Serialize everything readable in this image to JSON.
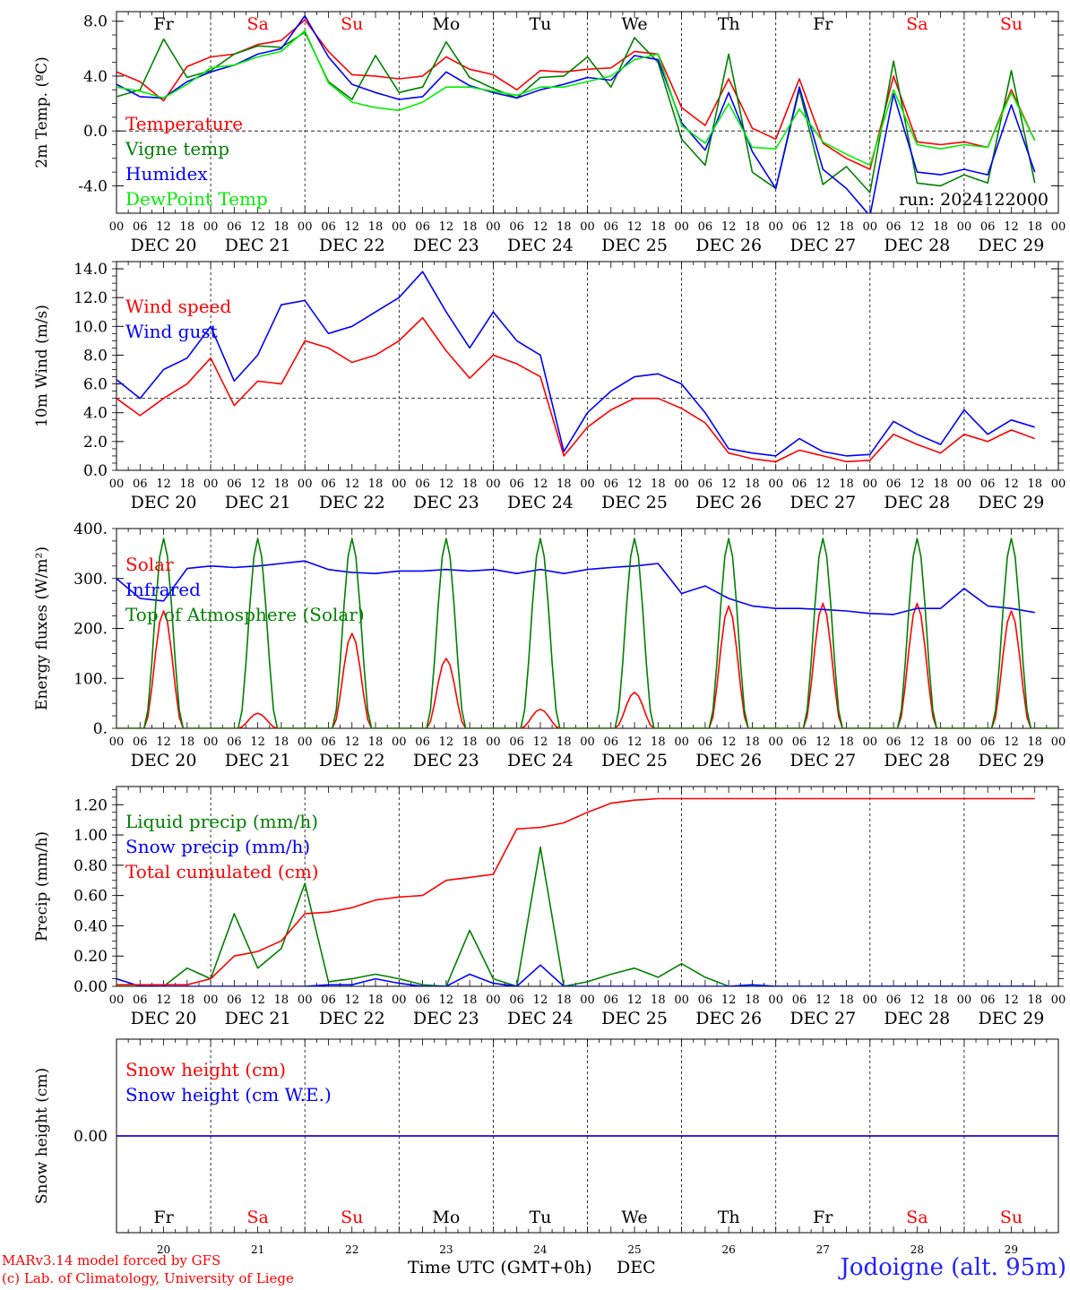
{
  "station": "Jodoigne (alt. 95m)",
  "credits": [
    "MARv3.14 model forced by GFS",
    "(c) Lab. of Climatology, University of Liege"
  ],
  "run_label": "run: 2024122000",
  "weekdays": [
    "Fr",
    "Sa",
    "Su",
    "Mo",
    "Tu",
    "We",
    "Th",
    "Fr",
    "Sa",
    "Su"
  ],
  "weekend_color": "#ff0000",
  "dates": [
    "DEC 20",
    "DEC 21",
    "DEC 22",
    "DEC 23",
    "DEC 24",
    "DEC 25",
    "DEC 26",
    "DEC 27",
    "DEC 28",
    "DEC 29"
  ],
  "hour_ticks": [
    "00",
    "06",
    "12",
    "18"
  ],
  "last_tick": "00",
  "bottom_day_numbers": [
    "20",
    "21",
    "22",
    "23",
    "24",
    "25",
    "26",
    "27",
    "28",
    "29"
  ],
  "x_title": "Time UTC (GMT+0h)",
  "x_month": "DEC",
  "chart_data": [
    {
      "type": "line",
      "ylabel": "2m Temp. (ºC)",
      "ylim": [
        -6,
        8.7
      ],
      "yticks": [
        -4,
        0,
        4,
        8
      ],
      "ytick_labels": [
        "-4.0",
        "0.0",
        "4.0",
        "8.0"
      ],
      "reference_line": 0,
      "x_hours": [
        0,
        6,
        12,
        18,
        24,
        30,
        36,
        42,
        48,
        54,
        60,
        66,
        72,
        78,
        84,
        90,
        96,
        102,
        108,
        114,
        120,
        126,
        132,
        138,
        144,
        150,
        156,
        162,
        168,
        174,
        180,
        186,
        192,
        198,
        204,
        210,
        216,
        222,
        228,
        234
      ],
      "series": [
        {
          "name": "Temperature",
          "color": "#ff0000",
          "values": [
            4.3,
            3.6,
            2.2,
            4.7,
            5.4,
            5.6,
            6.3,
            6.6,
            8.1,
            5.8,
            4.1,
            4.0,
            3.8,
            4.0,
            5.4,
            4.5,
            4.1,
            3.0,
            4.4,
            4.3,
            4.5,
            4.6,
            5.8,
            5.6,
            1.7,
            0.4,
            3.8,
            0.2,
            -0.6,
            3.8,
            -0.9,
            -2.0,
            -2.8,
            4.0,
            -0.8,
            -1.0,
            -0.8,
            -1.2,
            3.0,
            -0.7
          ]
        },
        {
          "name": "Vigne temp",
          "color": "#008000",
          "values": [
            2.5,
            3.0,
            6.7,
            3.9,
            4.4,
            5.6,
            6.2,
            6.1,
            7.2,
            3.6,
            2.3,
            5.5,
            2.8,
            3.2,
            6.5,
            3.9,
            3.1,
            2.4,
            3.9,
            4.0,
            5.4,
            3.2,
            6.8,
            5.0,
            -0.6,
            -2.5,
            5.6,
            -3.0,
            -4.2,
            3.0,
            -3.9,
            -2.6,
            -4.5,
            5.1,
            -3.8,
            -4.0,
            -3.2,
            -3.8,
            4.4,
            -3.8
          ]
        },
        {
          "name": "Humidex",
          "color": "#0000ff",
          "values": [
            3.4,
            2.5,
            2.4,
            3.6,
            4.3,
            4.8,
            5.6,
            6.0,
            8.4,
            5.4,
            3.4,
            2.8,
            2.3,
            2.5,
            4.3,
            3.3,
            2.8,
            2.4,
            3.0,
            3.4,
            3.9,
            3.7,
            5.5,
            5.2,
            0.6,
            -1.4,
            2.8,
            -1.5,
            -4.2,
            3.2,
            -2.8,
            -4.2,
            -6.2,
            2.7,
            -3.0,
            -3.2,
            -2.8,
            -3.2,
            1.9,
            -3.0
          ]
        },
        {
          "name": "DewPoint Temp",
          "color": "#00ee00",
          "values": [
            3.2,
            2.9,
            2.4,
            3.4,
            4.6,
            4.8,
            5.4,
            5.8,
            7.3,
            3.5,
            2.1,
            1.7,
            1.5,
            2.1,
            3.2,
            3.2,
            2.9,
            2.6,
            3.2,
            3.2,
            3.6,
            4.0,
            5.2,
            5.6,
            0.4,
            -0.9,
            2.0,
            -1.2,
            -1.3,
            1.6,
            -0.8,
            -1.7,
            -2.5,
            3.0,
            -1.0,
            -1.3,
            -1.0,
            -1.2,
            2.8,
            -0.7
          ]
        }
      ]
    },
    {
      "type": "line",
      "ylabel": "10m Wind (m/s)",
      "ylim": [
        0,
        14.5
      ],
      "yticks": [
        0,
        2,
        4,
        6,
        8,
        10,
        12,
        14
      ],
      "ytick_labels": [
        "0.0",
        "2.0",
        "4.0",
        "6.0",
        "8.0",
        "10.0",
        "12.0",
        "14.0"
      ],
      "reference_line": 5,
      "x_hours": [
        0,
        6,
        12,
        18,
        24,
        30,
        36,
        42,
        48,
        54,
        60,
        66,
        72,
        78,
        84,
        90,
        96,
        102,
        108,
        114,
        120,
        126,
        132,
        138,
        144,
        150,
        156,
        162,
        168,
        174,
        180,
        186,
        192,
        198,
        204,
        210,
        216,
        222,
        228,
        234
      ],
      "series": [
        {
          "name": "Wind speed",
          "color": "#ff0000",
          "values": [
            5.0,
            3.8,
            5.0,
            6.0,
            7.8,
            4.5,
            6.2,
            6.0,
            9.0,
            8.5,
            7.5,
            8.0,
            9.0,
            10.6,
            8.3,
            6.4,
            8.0,
            7.4,
            6.5,
            1.0,
            3.0,
            4.2,
            5.0,
            5.0,
            4.3,
            3.3,
            1.2,
            0.8,
            0.6,
            1.4,
            1.0,
            0.6,
            0.7,
            2.5,
            1.8,
            1.2,
            2.5,
            2.0,
            2.8,
            2.2
          ]
        },
        {
          "name": "Wind gust",
          "color": "#0000ff",
          "values": [
            6.3,
            5.0,
            7.0,
            7.8,
            10.0,
            6.2,
            8.0,
            11.5,
            11.8,
            9.5,
            10.0,
            11.0,
            12.0,
            13.8,
            11.0,
            8.5,
            11.0,
            9.0,
            8.0,
            1.3,
            4.0,
            5.5,
            6.5,
            6.7,
            6.0,
            4.0,
            1.5,
            1.2,
            1.0,
            2.2,
            1.3,
            1.0,
            1.1,
            3.4,
            2.5,
            1.8,
            4.2,
            2.5,
            3.5,
            3.0
          ]
        }
      ]
    },
    {
      "type": "line",
      "ylabel": "Energy fluxes (W/m²)",
      "ylim": [
        0,
        400
      ],
      "yticks": [
        0,
        100,
        200,
        300,
        400
      ],
      "ytick_labels": [
        "0.",
        "100.",
        "200.",
        "300.",
        "400."
      ],
      "x_hours": [
        0,
        6,
        12,
        18,
        24,
        30,
        36,
        42,
        48,
        54,
        60,
        66,
        72,
        78,
        84,
        90,
        96,
        102,
        108,
        114,
        120,
        126,
        132,
        138,
        144,
        150,
        156,
        162,
        168,
        174,
        180,
        186,
        192,
        198,
        204,
        210,
        216,
        222,
        228,
        234
      ],
      "series": [
        {
          "name": "Solar",
          "color": "#ff0000",
          "peaks": [
            235,
            30,
            190,
            140,
            38,
            72,
            245,
            250,
            250,
            235
          ]
        },
        {
          "name": "Infrared",
          "color": "#0000ff",
          "values": [
            300,
            260,
            255,
            320,
            325,
            322,
            325,
            330,
            335,
            318,
            312,
            310,
            315,
            315,
            318,
            315,
            318,
            310,
            318,
            310,
            318,
            322,
            325,
            330,
            270,
            285,
            260,
            245,
            240,
            240,
            238,
            235,
            230,
            228,
            240,
            240,
            280,
            245,
            240,
            232
          ]
        },
        {
          "name": "Top of Atmosphere (Solar)",
          "color": "#008000",
          "peaks": [
            380,
            380,
            380,
            380,
            380,
            380,
            380,
            380,
            380,
            380
          ]
        }
      ]
    },
    {
      "type": "line",
      "ylabel": "Precip (mm/h)",
      "ylim": [
        0,
        1.32
      ],
      "yticks": [
        0,
        0.2,
        0.4,
        0.6,
        0.8,
        1.0,
        1.2
      ],
      "ytick_labels": [
        "0.00",
        "0.20",
        "0.40",
        "0.60",
        "0.80",
        "1.00",
        "1.20"
      ],
      "x_hours": [
        0,
        6,
        12,
        18,
        24,
        30,
        36,
        42,
        48,
        54,
        60,
        66,
        72,
        78,
        84,
        90,
        96,
        102,
        108,
        114,
        120,
        126,
        132,
        138,
        144,
        150,
        156,
        162,
        168,
        174,
        180,
        186,
        192,
        198,
        204,
        210,
        216,
        222,
        228,
        234
      ],
      "series": [
        {
          "name": "Liquid precip (mm/h)",
          "color": "#008000",
          "values": [
            0.0,
            0.0,
            0.0,
            0.12,
            0.05,
            0.48,
            0.12,
            0.25,
            0.68,
            0.03,
            0.05,
            0.08,
            0.05,
            0.01,
            0.0,
            0.37,
            0.05,
            0.0,
            0.92,
            0.0,
            0.03,
            0.08,
            0.12,
            0.06,
            0.15,
            0.06,
            0.0,
            0.0,
            0.0,
            0.0,
            0.0,
            0.0,
            0.0,
            0.0,
            0.0,
            0.0,
            0.0,
            0.0,
            0.0,
            0.0
          ]
        },
        {
          "name": "Snow precip (mm/h)",
          "color": "#0000ff",
          "values": [
            0.05,
            0.0,
            0.0,
            0.0,
            0.0,
            0.0,
            0.0,
            0.0,
            0.0,
            0.01,
            0.01,
            0.05,
            0.02,
            0.0,
            0.0,
            0.08,
            0.02,
            0.0,
            0.14,
            0.0,
            0.0,
            0.0,
            0.0,
            0.0,
            0.0,
            0.0,
            0.0,
            0.01,
            0.0,
            0.0,
            0.0,
            0.0,
            0.0,
            0.0,
            0.0,
            0.0,
            0.0,
            0.0,
            0.0,
            0.0
          ]
        },
        {
          "name": "Total cumulated (cm)",
          "color": "#ff0000",
          "values": [
            0.01,
            0.01,
            0.01,
            0.01,
            0.05,
            0.2,
            0.23,
            0.3,
            0.48,
            0.49,
            0.52,
            0.57,
            0.59,
            0.6,
            0.7,
            0.72,
            0.74,
            1.04,
            1.05,
            1.08,
            1.15,
            1.21,
            1.23,
            1.24,
            1.24,
            1.24,
            1.24,
            1.24,
            1.24,
            1.24,
            1.24,
            1.24,
            1.24,
            1.24,
            1.24,
            1.24,
            1.24,
            1.24,
            1.24,
            1.24
          ]
        }
      ]
    },
    {
      "type": "line",
      "ylabel": "Snow height (cm)",
      "ylim": [
        -1,
        1
      ],
      "yticks": [
        0
      ],
      "ytick_labels": [
        "0.00"
      ],
      "x_hours": [
        0,
        240
      ],
      "series": [
        {
          "name": "Snow height (cm)",
          "color": "#ff0000",
          "values": [
            0,
            0
          ]
        },
        {
          "name": "Snow height (cm W.E.)",
          "color": "#0000ff",
          "values": [
            0,
            0
          ]
        }
      ]
    }
  ]
}
